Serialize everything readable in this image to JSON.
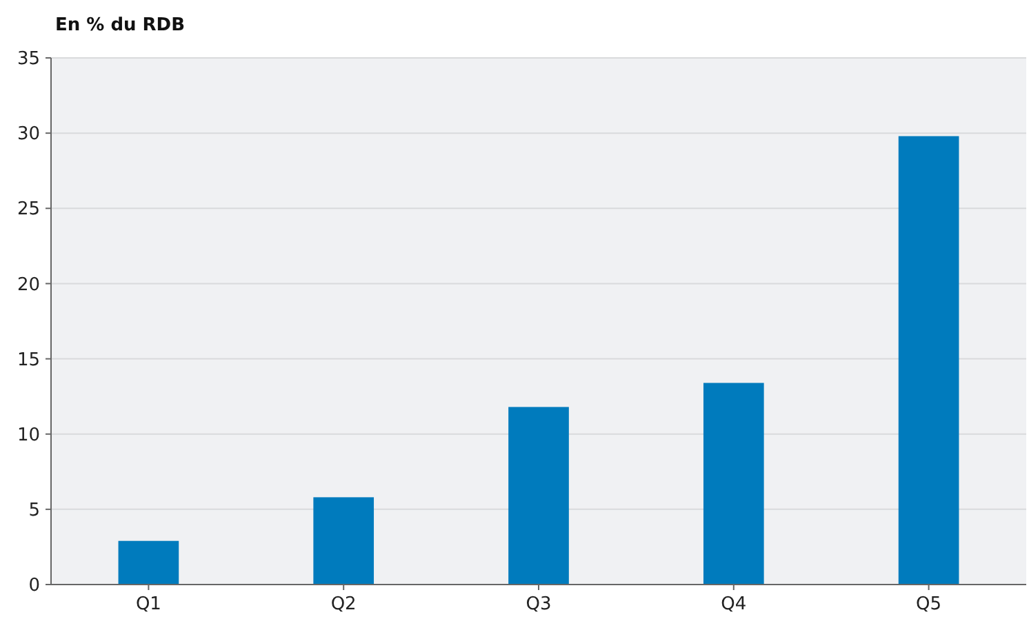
{
  "chart_data": {
    "type": "bar",
    "ylabel": "En % du RDB",
    "categories": [
      "Q1",
      "Q2",
      "Q3",
      "Q4",
      "Q5"
    ],
    "values": [
      2.9,
      5.8,
      11.8,
      13.4,
      29.8
    ],
    "color": "#007bbd",
    "ylim": [
      0,
      35
    ],
    "yticks": [
      0,
      5,
      10,
      15,
      20,
      25,
      30,
      35
    ],
    "grid": "y"
  }
}
